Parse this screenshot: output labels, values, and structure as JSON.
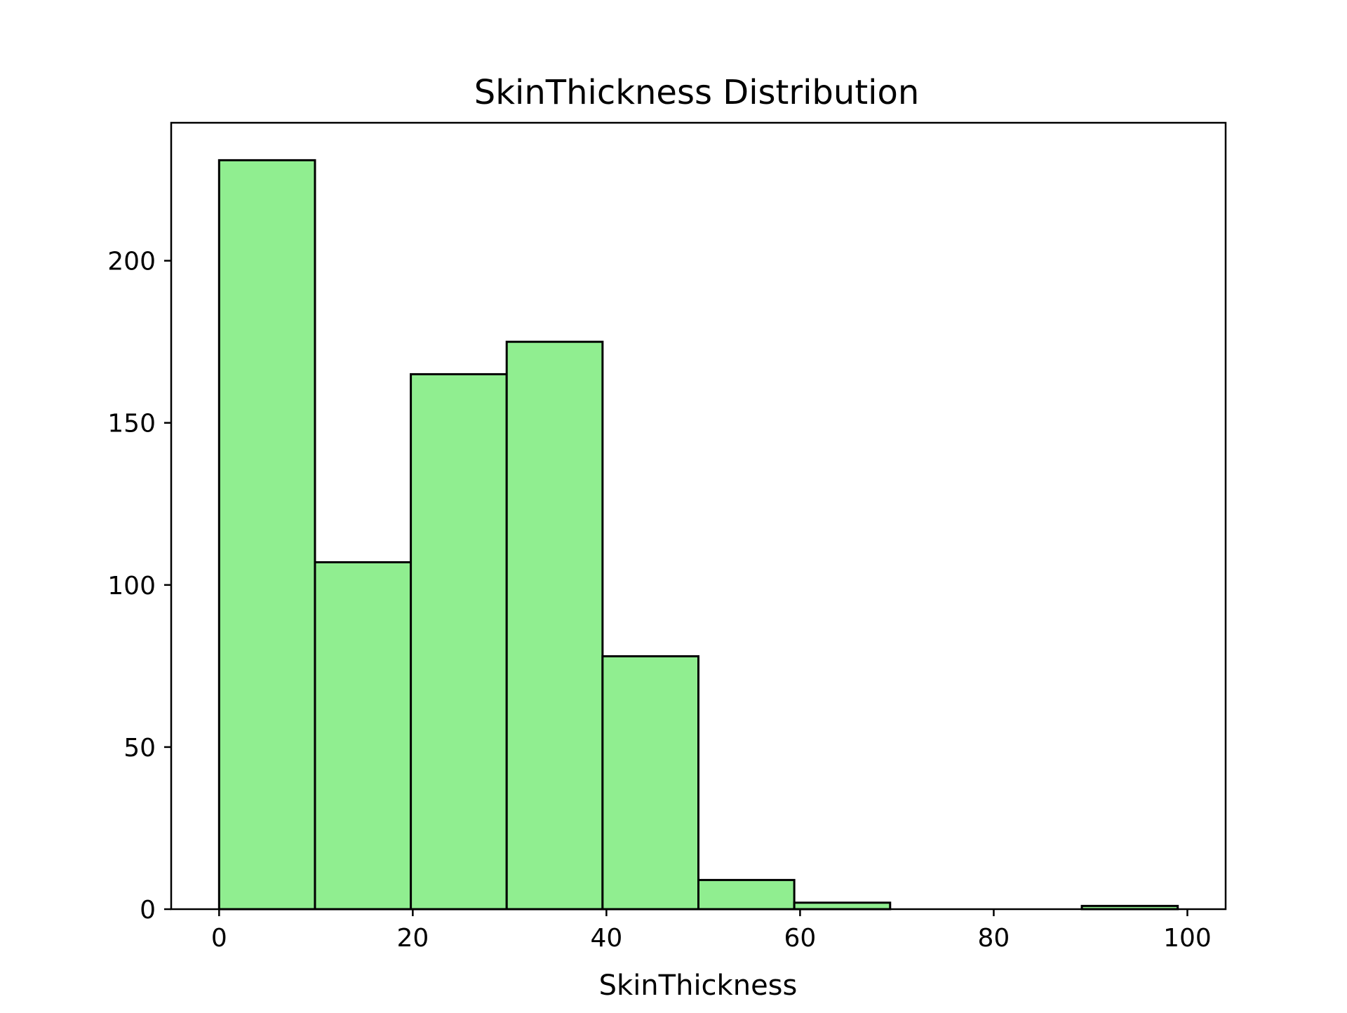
{
  "chart_data": {
    "type": "bar",
    "title": "SkinThickness Distribution",
    "xlabel": "SkinThickness",
    "ylabel": "",
    "bins": [
      {
        "start": 0,
        "end": 9.9,
        "count": 231
      },
      {
        "start": 9.9,
        "end": 19.8,
        "count": 107
      },
      {
        "start": 19.8,
        "end": 29.7,
        "count": 165
      },
      {
        "start": 29.7,
        "end": 39.6,
        "count": 175
      },
      {
        "start": 39.6,
        "end": 49.5,
        "count": 78
      },
      {
        "start": 49.5,
        "end": 59.4,
        "count": 9
      },
      {
        "start": 59.4,
        "end": 69.3,
        "count": 2
      },
      {
        "start": 69.3,
        "end": 79.2,
        "count": 0
      },
      {
        "start": 79.2,
        "end": 89.1,
        "count": 0
      },
      {
        "start": 89.1,
        "end": 99.0,
        "count": 1
      }
    ],
    "xlim": [
      -4.95,
      103.95
    ],
    "ylim": [
      0,
      242.55
    ],
    "xticks": [
      0,
      20,
      40,
      60,
      80,
      100
    ],
    "yticks": [
      0,
      50,
      100,
      150,
      200
    ],
    "bar_color": "#90ee90",
    "edge_color": "#000000",
    "grid": false,
    "legend": false
  }
}
